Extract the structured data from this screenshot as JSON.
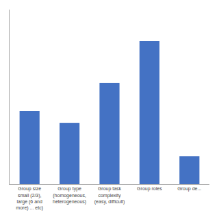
{
  "chart_data": {
    "type": "bar",
    "categories": [
      "Group size\nsmall (2/3),\nlarge (6 and\nmore) ... etc)",
      "Group type\n(homogeneous,\nheterogeneous)",
      "Group task\ncomplexity\n(easy, difficult)",
      "Group roles",
      "Group de..."
    ],
    "values": [
      4.2,
      3.5,
      5.8,
      8.2,
      1.6
    ],
    "color": "#4472c4",
    "ylim": [
      0,
      10.0
    ],
    "grid": false,
    "tick_labels": "x"
  }
}
